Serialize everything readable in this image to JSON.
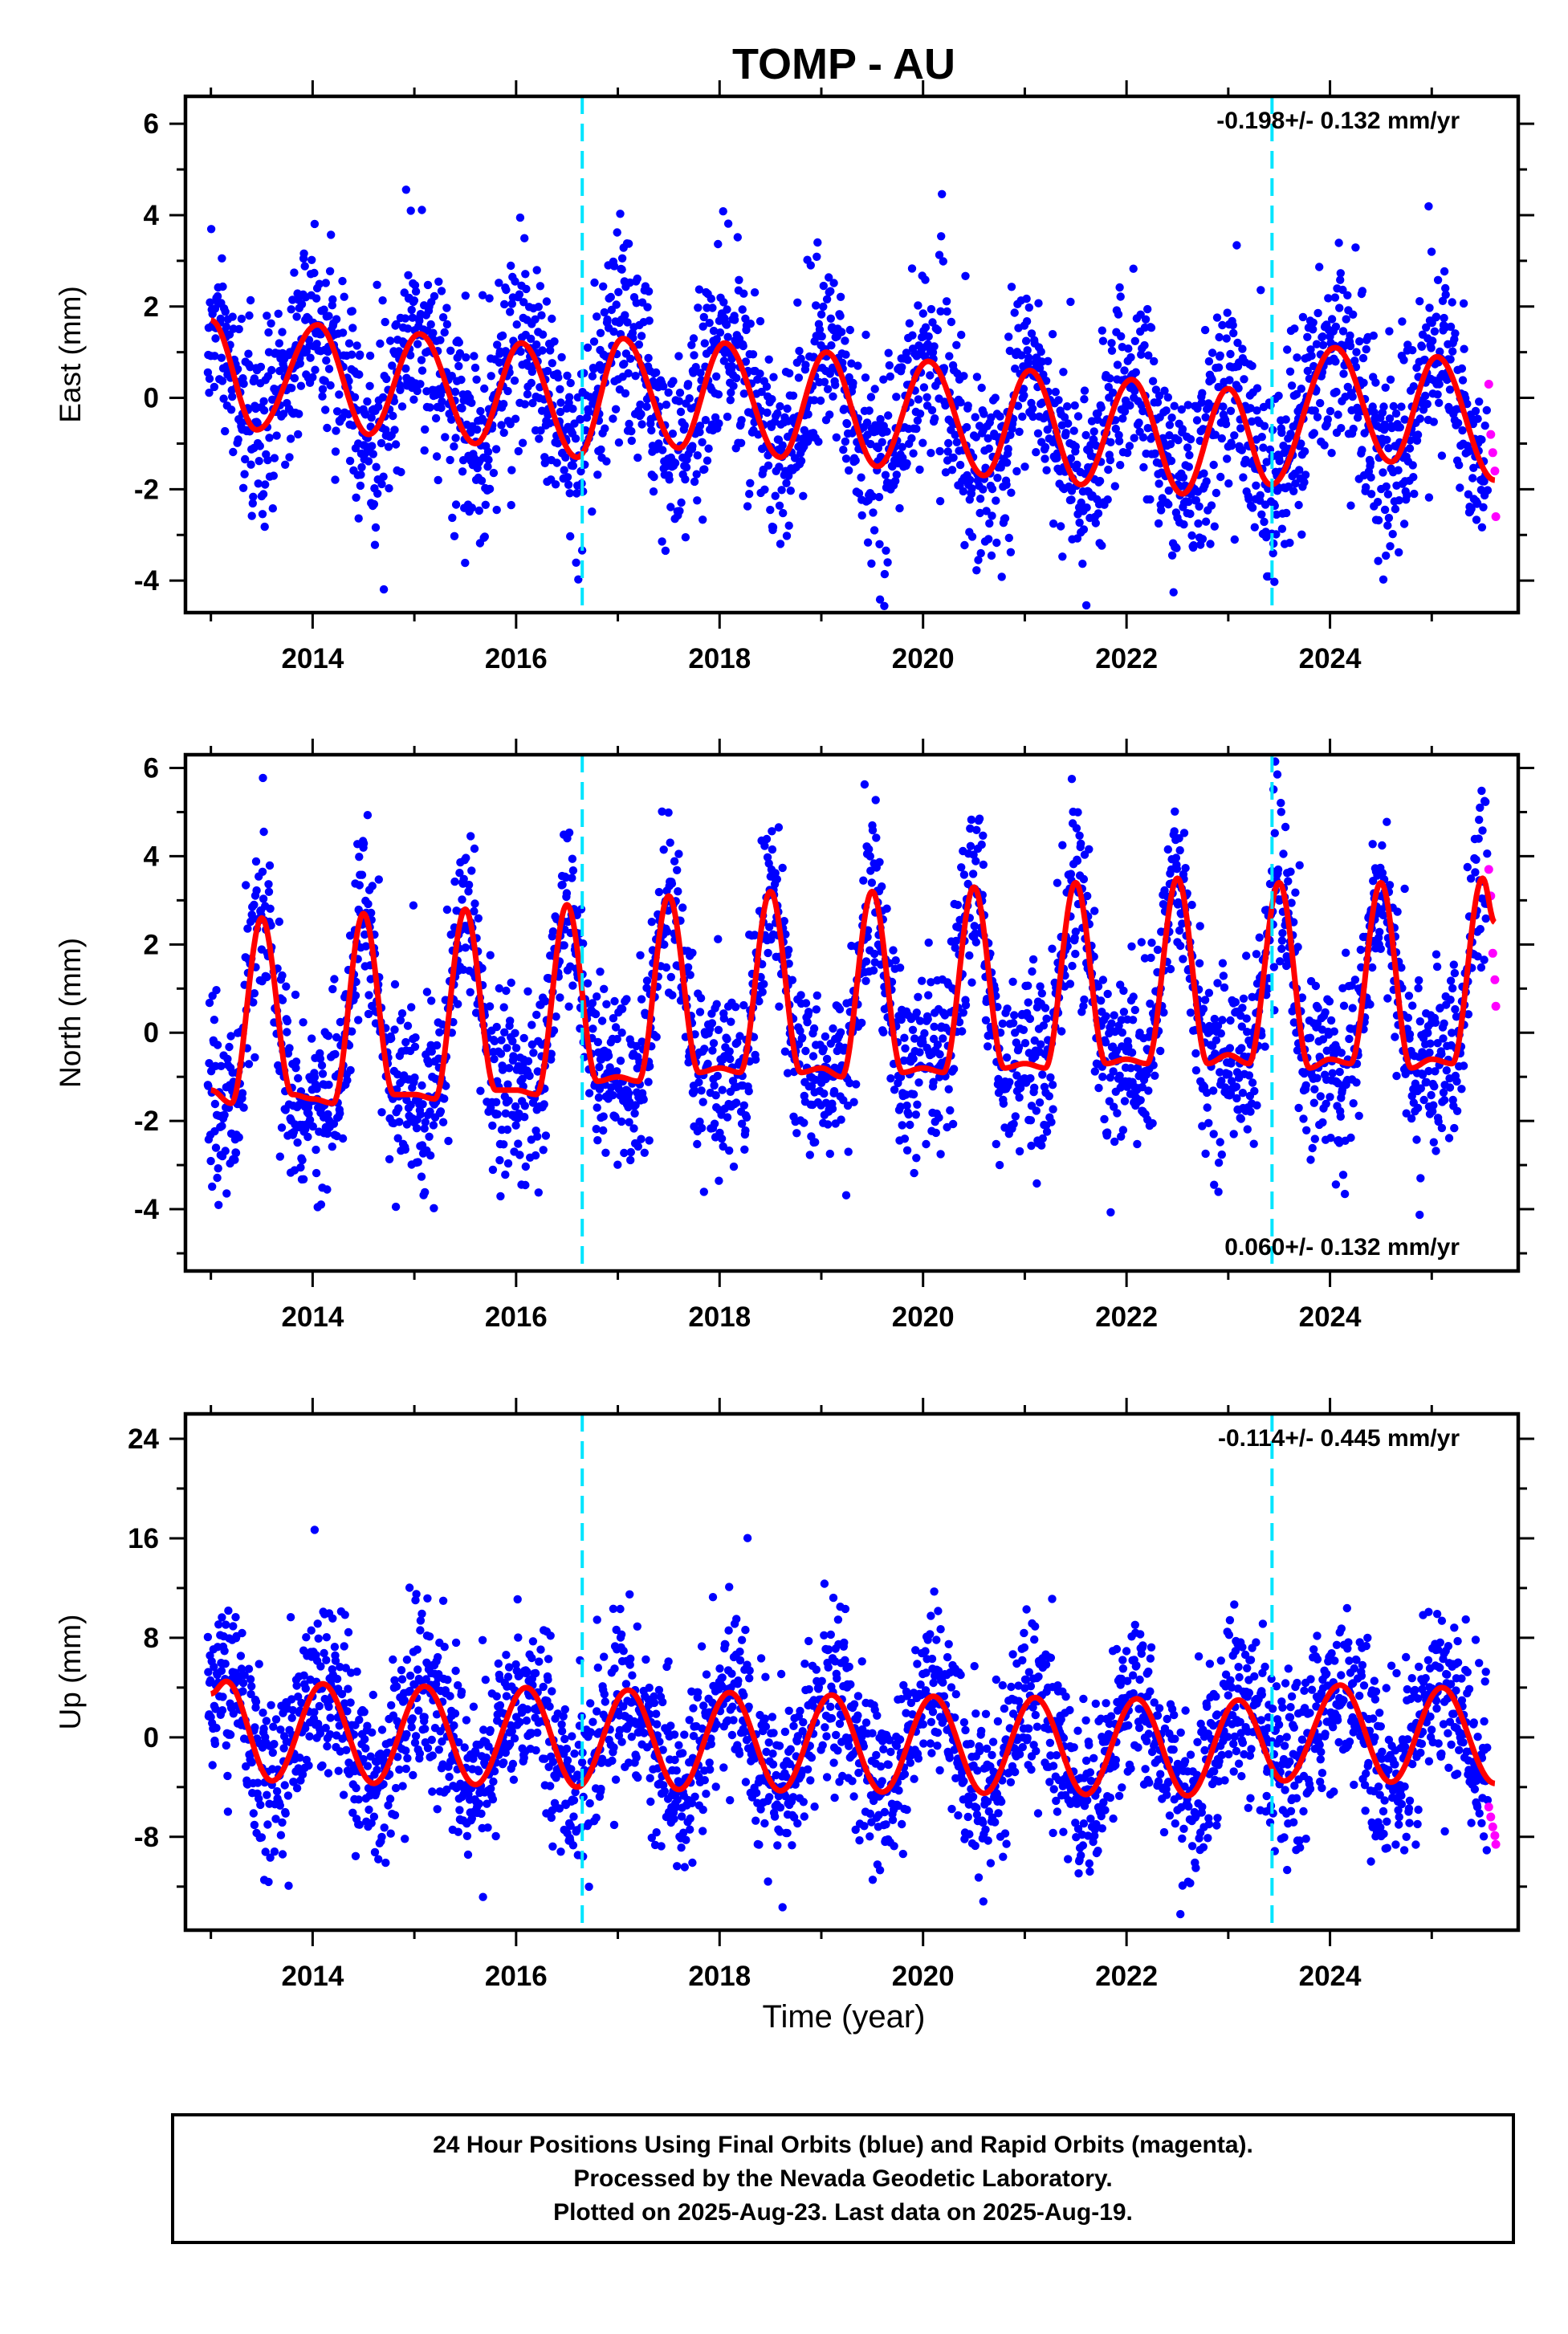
{
  "chart_data": {
    "type": "scatter",
    "title": "TOMP - AU",
    "xlabel": "Time (year)",
    "xlim": [
      2012.75,
      2025.85
    ],
    "x_ticks": [
      2014,
      2016,
      2018,
      2020,
      2022,
      2024
    ],
    "x_tick_labels": [
      "2014",
      "2016",
      "2018",
      "2020",
      "2022",
      "2024"
    ],
    "equipment_change_lines": [
      2016.65,
      2023.43
    ],
    "colors": {
      "final_orbits": "#0000ff",
      "rapid_orbits": "#ff00ff",
      "model_fit": "#ff0000",
      "equipment_change": "#00e5ff"
    },
    "series": [
      {
        "name": "Final Orbits (blue)"
      },
      {
        "name": "Rapid Orbits (magenta)"
      },
      {
        "name": ""
      }
    ],
    "panels": [
      {
        "name": "east",
        "ylabel": "East (mm)",
        "ylim": [
          -4.7,
          6.6
        ],
        "y_ticks": [
          -4,
          -2,
          0,
          2,
          4,
          6
        ],
        "y_tick_labels": [
          "-4",
          "-2",
          "0",
          "2",
          "4",
          "6"
        ],
        "rate_label": "-0.198+/- 0.132 mm/yr",
        "rate_position": "top-right",
        "trend_mm_per_yr": -0.198,
        "fit_sample_years": [
          2013.0,
          2013.45,
          2014.05,
          2014.55,
          2015.05,
          2015.6,
          2016.05,
          2016.6,
          2017.05,
          2017.6,
          2018.05,
          2018.6,
          2019.05,
          2019.55,
          2020.05,
          2020.6,
          2021.05,
          2021.55,
          2022.05,
          2022.55,
          2023.0,
          2023.42,
          2024.05,
          2024.6,
          2025.05,
          2025.62
        ],
        "fit_sample_mm": [
          1.7,
          -0.7,
          1.6,
          -0.8,
          1.4,
          -1.0,
          1.2,
          -1.3,
          1.3,
          -1.1,
          1.2,
          -1.3,
          1.0,
          -1.5,
          0.8,
          -1.7,
          0.6,
          -1.9,
          0.4,
          -2.1,
          0.2,
          -1.9,
          1.1,
          -1.4,
          0.9,
          -1.8
        ],
        "scatter_sd_mm": 1.05,
        "rapid_sample_years": [
          2025.56,
          2025.58,
          2025.6,
          2025.62,
          2025.63
        ],
        "rapid_sample_mm": [
          0.3,
          -0.8,
          -1.2,
          -1.6,
          -2.6
        ]
      },
      {
        "name": "north",
        "ylabel": "North (mm)",
        "ylim": [
          -5.4,
          6.3
        ],
        "y_ticks": [
          -4,
          -2,
          0,
          2,
          4,
          6
        ],
        "y_tick_labels": [
          "-4",
          "-2",
          "0",
          "2",
          "4",
          "6"
        ],
        "rate_label": "0.060+/- 0.132 mm/yr",
        "rate_position": "bottom-right",
        "trend_mm_per_yr": 0.06,
        "fit_sample_years": [
          2013.0,
          2013.2,
          2013.5,
          2013.8,
          2014.0,
          2014.2,
          2014.5,
          2014.8,
          2015.0,
          2015.2,
          2015.5,
          2015.8,
          2016.0,
          2016.2,
          2016.5,
          2016.8,
          2017.0,
          2017.2,
          2017.5,
          2017.8,
          2018.0,
          2018.2,
          2018.5,
          2018.8,
          2019.0,
          2019.2,
          2019.5,
          2019.8,
          2020.0,
          2020.2,
          2020.5,
          2020.8,
          2021.0,
          2021.2,
          2021.5,
          2021.8,
          2022.0,
          2022.2,
          2022.5,
          2022.8,
          2023.0,
          2023.2,
          2023.5,
          2023.8,
          2024.0,
          2024.2,
          2024.5,
          2024.8,
          2025.0,
          2025.2,
          2025.5,
          2025.62
        ],
        "fit_sample_mm": [
          -1.3,
          -1.6,
          2.6,
          -1.4,
          -1.5,
          -1.6,
          2.7,
          -1.4,
          -1.4,
          -1.5,
          2.8,
          -1.3,
          -1.3,
          -1.4,
          2.9,
          -1.1,
          -1.0,
          -1.1,
          3.1,
          -0.9,
          -0.8,
          -0.9,
          3.2,
          -0.9,
          -0.8,
          -1.0,
          3.2,
          -0.9,
          -0.8,
          -0.9,
          3.3,
          -0.8,
          -0.7,
          -0.8,
          3.4,
          -0.7,
          -0.6,
          -0.7,
          3.5,
          -0.7,
          -0.5,
          -0.7,
          3.4,
          -0.8,
          -0.6,
          -0.7,
          3.4,
          -0.8,
          -0.6,
          -0.7,
          3.5,
          2.5
        ],
        "scatter_sd_mm": 1.0,
        "rapid_sample_years": [
          2025.56,
          2025.58,
          2025.6,
          2025.62,
          2025.63
        ],
        "rapid_sample_mm": [
          3.7,
          3.1,
          1.8,
          1.2,
          0.6
        ]
      },
      {
        "name": "up",
        "ylabel": "Up (mm)",
        "ylim": [
          -15.5,
          26.0
        ],
        "y_ticks": [
          -8,
          0,
          8,
          16,
          24
        ],
        "y_tick_labels": [
          "-8",
          "0",
          "8",
          "16",
          "24"
        ],
        "rate_label": "-0.114+/- 0.445 mm/yr",
        "rate_position": "top-right",
        "trend_mm_per_yr": -0.114,
        "fit_sample_years": [
          2013.0,
          2013.15,
          2013.6,
          2014.1,
          2014.6,
          2015.1,
          2015.6,
          2016.1,
          2016.6,
          2017.1,
          2017.6,
          2018.1,
          2018.6,
          2019.1,
          2019.6,
          2020.1,
          2020.6,
          2021.1,
          2021.6,
          2022.1,
          2022.6,
          2023.1,
          2023.55,
          2024.1,
          2024.6,
          2025.1,
          2025.62
        ],
        "fit_sample_mm": [
          3.5,
          4.5,
          -3.5,
          4.3,
          -3.7,
          4.1,
          -3.8,
          4.0,
          -4.0,
          3.8,
          -4.2,
          3.6,
          -4.3,
          3.4,
          -4.4,
          3.3,
          -4.5,
          3.2,
          -4.6,
          3.1,
          -4.7,
          3.0,
          -3.5,
          4.2,
          -3.6,
          4.0,
          -3.7
        ],
        "scatter_sd_mm": 3.4,
        "rapid_sample_years": [
          2025.56,
          2025.58,
          2025.6,
          2025.62,
          2025.63
        ],
        "rapid_sample_mm": [
          -5.6,
          -6.4,
          -7.2,
          -7.9,
          -8.6
        ]
      }
    ]
  },
  "footer": {
    "line1": "24 Hour Positions Using Final Orbits (blue) and Rapid Orbits (magenta).",
    "line2": "Processed by the Nevada Geodetic Laboratory.",
    "line3": "Plotted on 2025-Aug-23. Last data on 2025-Aug-19."
  }
}
